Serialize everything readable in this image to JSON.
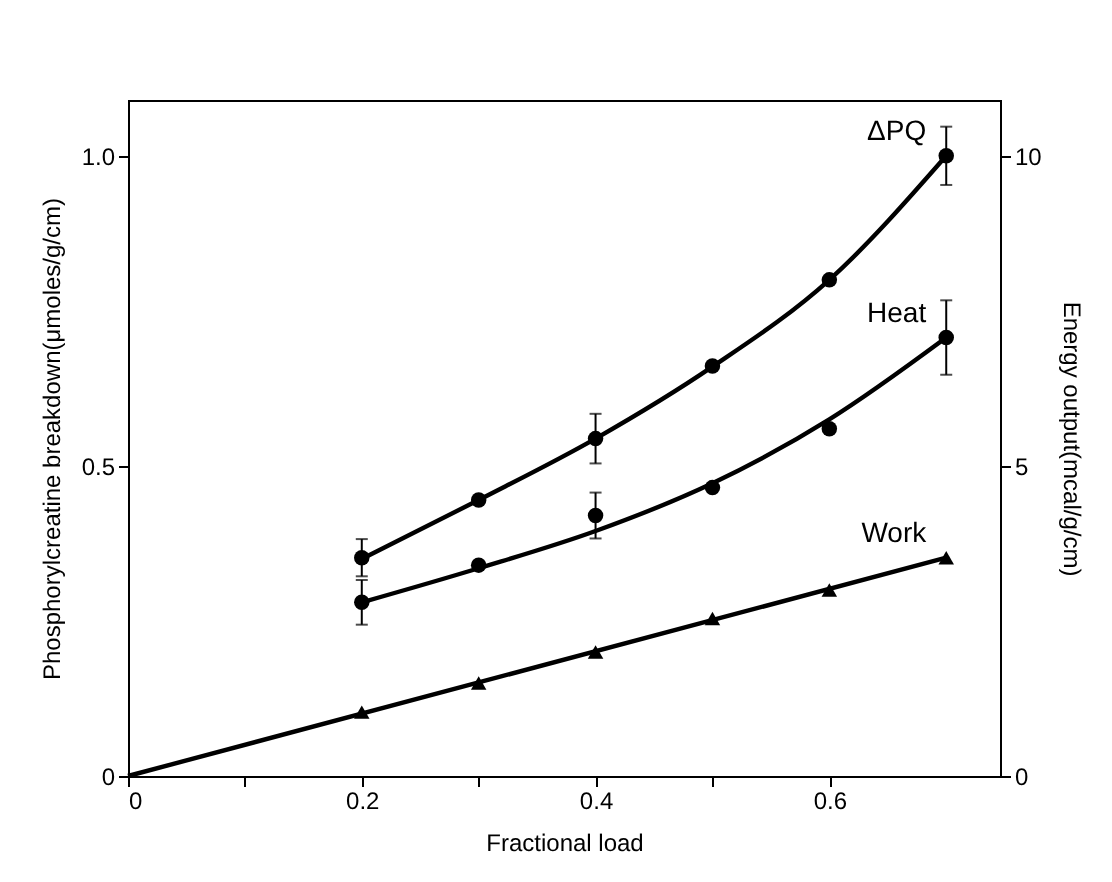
{
  "chart_data": {
    "type": "scatter",
    "xlabel": "Fractional load",
    "ylabel": "Phosphorylcreatine breakdown(μmoles/g/cm)",
    "y2label": "Energy output(mcal/g/cm)",
    "xlim": [
      0,
      0.746
    ],
    "xticks": [
      0,
      {
        "value": 0.1,
        "label": null
      },
      0.2,
      {
        "value": 0.3,
        "label": null
      },
      0.4,
      {
        "value": 0.5,
        "label": null
      },
      0.6
    ],
    "ylim": [
      0,
      1.09
    ],
    "yticks": [
      0,
      0.5,
      {
        "value": 1,
        "label": "1.0"
      }
    ],
    "y2lim": [
      0,
      10.9
    ],
    "y2ticks": [
      0,
      5,
      10
    ],
    "x": [
      0.2,
      0.3,
      0.4,
      0.5,
      0.6,
      0.7
    ],
    "grid": false,
    "series": [
      {
        "name": "ΔPQ",
        "color": "#000000",
        "marker": "circle",
        "values": [
          0.352,
          0.445,
          0.544,
          0.661,
          0.8,
          1.0
        ],
        "errors": [
          0.03,
          null,
          0.04,
          null,
          null,
          0.047
        ]
      },
      {
        "name": "Heat",
        "color": "#000000",
        "marker": "circle",
        "values": [
          0.28,
          0.34,
          0.42,
          0.465,
          0.56,
          0.707
        ],
        "errors": [
          0.036,
          null,
          0.037,
          null,
          null,
          0.06
        ]
      },
      {
        "name": "Work",
        "color": "#000000",
        "marker": "triangle",
        "values": [
          0.103,
          0.15,
          0.2,
          0.254,
          0.3,
          0.352
        ]
      },
      {
        "type": "line",
        "color": "#000000",
        "x": [
          0.2,
          0.3,
          0.4,
          0.5,
          0.6,
          0.7
        ],
        "values": [
          0.35,
          0.445,
          0.544,
          0.66,
          0.8,
          1.0
        ]
      },
      {
        "type": "line",
        "color": "#000000",
        "x": [
          0.2,
          0.3,
          0.4,
          0.5,
          0.6,
          0.7
        ],
        "values": [
          0.28,
          0.335,
          0.395,
          0.472,
          0.575,
          0.707
        ]
      },
      {
        "type": "line",
        "color": "#000000",
        "x": [
          0,
          0.7
        ],
        "values": [
          0,
          0.352
        ]
      }
    ]
  }
}
